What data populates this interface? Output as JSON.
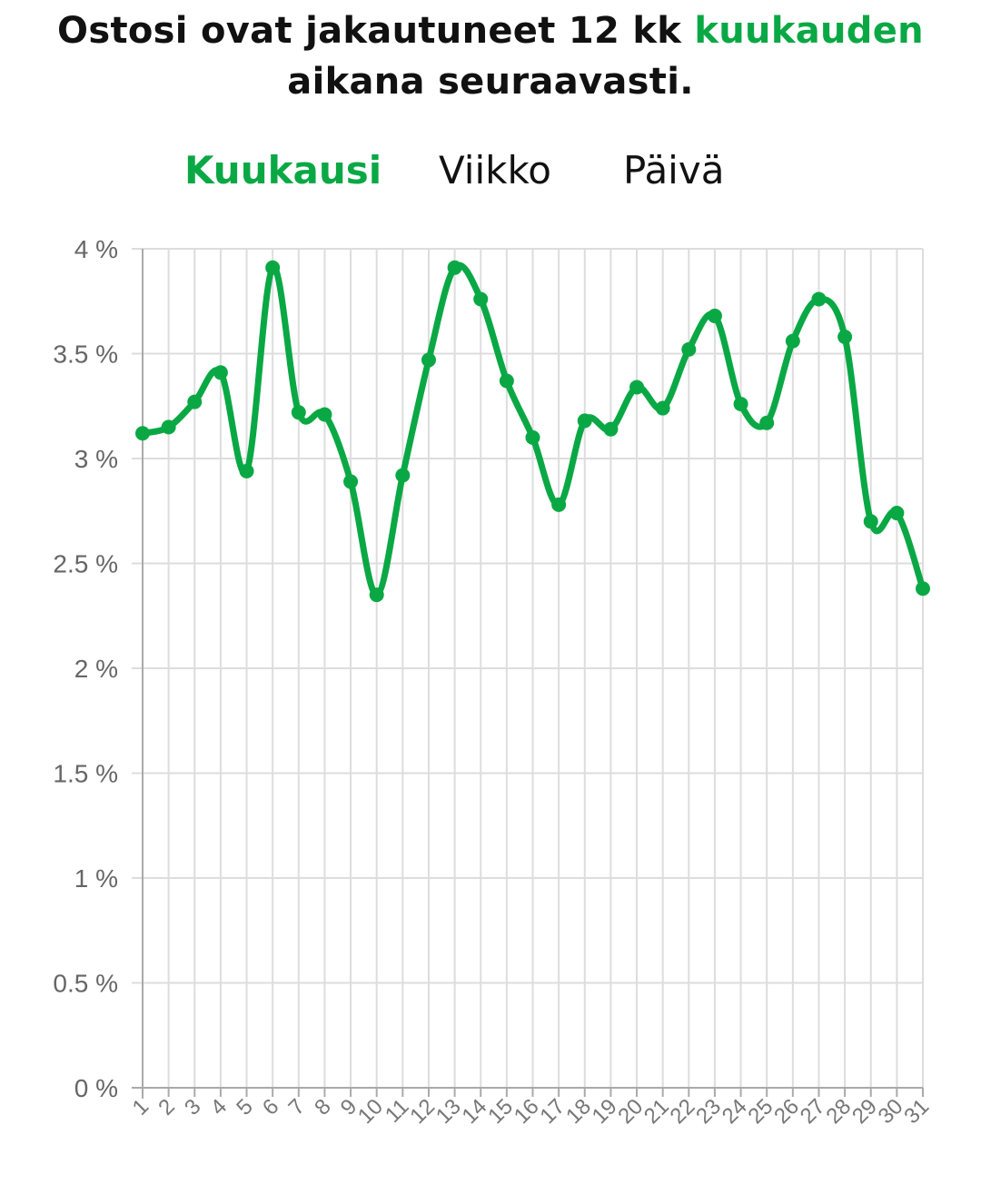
{
  "header": {
    "title_before": "Ostosi ovat jakautuneet 12 kk ",
    "title_accent": "kuukauden",
    "title_after": "aikana seuraavasti."
  },
  "tabs": [
    {
      "label": "Kuukausi",
      "active": true
    },
    {
      "label": "Viikko",
      "active": false
    },
    {
      "label": "Päivä",
      "active": false
    }
  ],
  "colors": {
    "accent": "#0aa845",
    "grid": "#dddddd",
    "axis": "#aaaaaa"
  },
  "chart_data": {
    "type": "line",
    "x": [
      "1",
      "2",
      "3",
      "4",
      "5",
      "6",
      "7",
      "8",
      "9",
      "10",
      "11",
      "12",
      "13",
      "14",
      "15",
      "16",
      "17",
      "18",
      "19",
      "20",
      "21",
      "22",
      "23",
      "24",
      "25",
      "26",
      "27",
      "28",
      "29",
      "30",
      "31"
    ],
    "values": [
      3.12,
      3.15,
      3.27,
      3.41,
      2.94,
      3.91,
      3.22,
      3.21,
      2.89,
      2.35,
      2.92,
      3.47,
      3.91,
      3.76,
      3.37,
      3.1,
      2.78,
      3.18,
      3.14,
      3.34,
      3.24,
      3.52,
      3.68,
      3.26,
      3.17,
      3.56,
      3.76,
      3.58,
      2.7,
      2.74,
      2.38
    ],
    "yticks": [
      "0 %",
      "0.5 %",
      "1 %",
      "1.5 %",
      "2 %",
      "2.5 %",
      "3 %",
      "3.5 %",
      "4 %"
    ],
    "ylim": [
      0,
      4
    ],
    "grid": true,
    "legend": "none"
  }
}
